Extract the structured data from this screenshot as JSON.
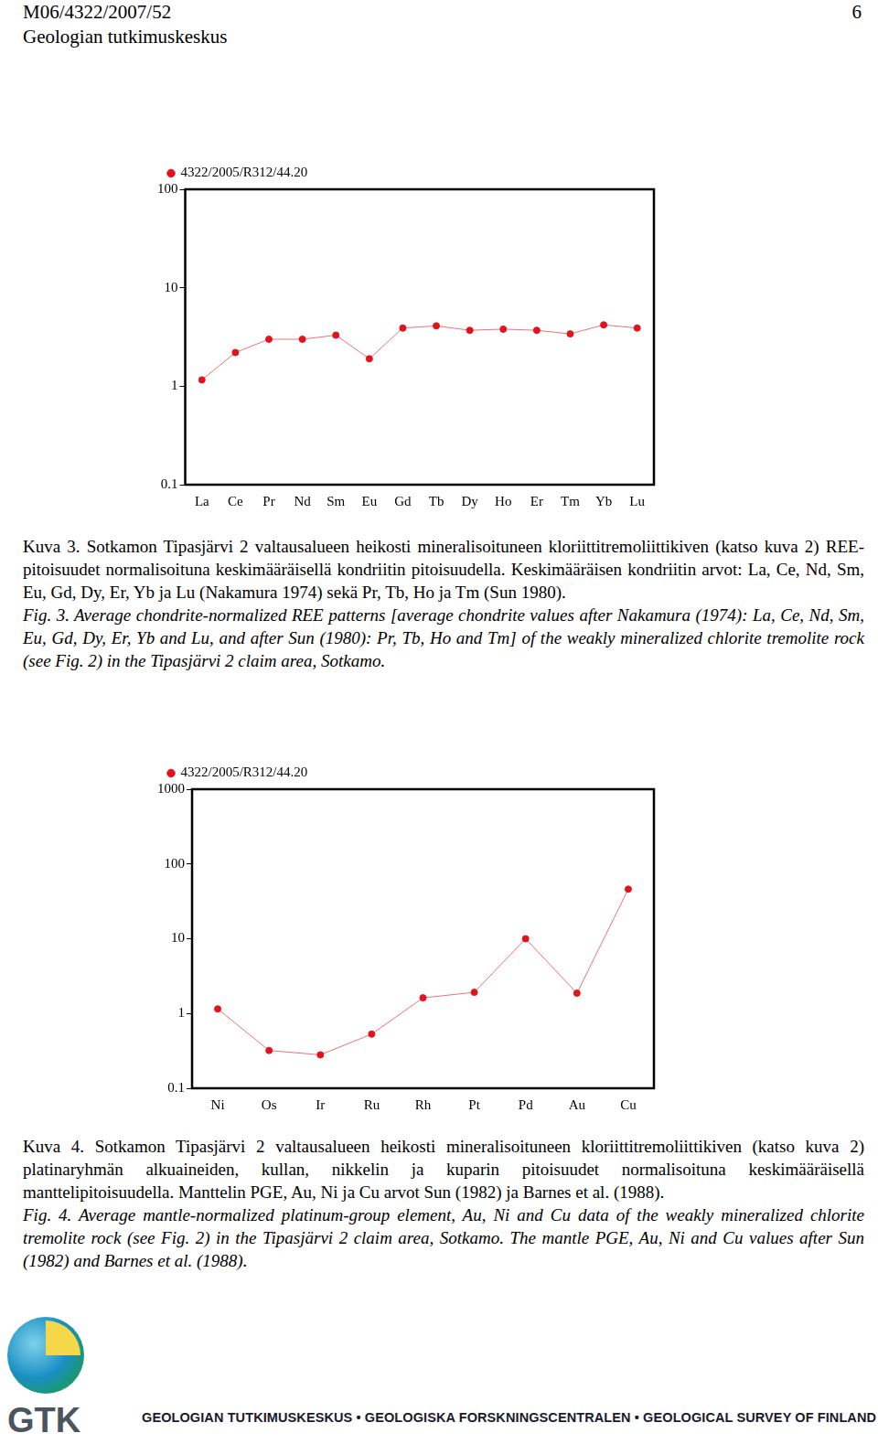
{
  "header": {
    "lines": [
      "M06/4322/2007/52",
      "Geologian tutkimuskeskus"
    ],
    "page": "6"
  },
  "chart_data": [
    {
      "type": "line",
      "log": "y",
      "legend": "top left",
      "grid": false,
      "marker": "circle",
      "categories": [
        "La",
        "Ce",
        "Pr",
        "Nd",
        "Sm",
        "Eu",
        "Gd",
        "Tb",
        "Dy",
        "Ho",
        "Er",
        "Tm",
        "Yb",
        "Lu"
      ],
      "series": [
        {
          "name": "4322/2005/R312/44.20",
          "color": "#e3121b",
          "values": [
            1.16,
            2.2,
            3.0,
            3.0,
            3.3,
            1.9,
            3.9,
            4.1,
            3.7,
            3.8,
            3.7,
            3.4,
            4.2,
            3.9
          ]
        }
      ],
      "ylim": [
        0.1,
        100
      ],
      "yticks": [
        0.1,
        1,
        10,
        100
      ]
    },
    {
      "type": "line",
      "log": "y",
      "legend": "top left",
      "grid": false,
      "marker": "circle",
      "categories": [
        "Ni",
        "Os",
        "Ir",
        "Ru",
        "Rh",
        "Pt",
        "Pd",
        "Au",
        "Cu"
      ],
      "series": [
        {
          "name": "4322/2005/R312/44.20",
          "color": "#e3121b",
          "values": [
            1.15,
            0.32,
            0.28,
            0.53,
            1.62,
            1.92,
            10,
            1.87,
            46
          ]
        }
      ],
      "ylim": [
        0.1,
        1000
      ],
      "yticks": [
        0.1,
        1,
        10,
        100,
        1000
      ]
    }
  ],
  "captions": [
    {
      "fi_label": "Kuva 3.",
      "fi": "Sotkamon Tipasjärvi 2 valtausalueen heikosti mineralisoituneen kloriittitremoliittikiven (katso kuva 2) REE-pitoisuudet normalisoituna keskimääräisellä kondriitin pitoisuudella. Keskimääräisen kondriitin arvot: La, Ce, Nd, Sm, Eu, Gd, Dy, Er, Yb ja Lu (Nakamura 1974) sekä Pr, Tb, Ho ja Tm (Sun 1980).",
      "en_label": "Fig. 3.",
      "en": "Average chondrite-normalized REE patterns [average chondrite values after Nakamura (1974): La, Ce, Nd, Sm, Eu, Gd, Dy, Er, Yb and Lu, and after Sun (1980): Pr, Tb, Ho and Tm] of the weakly mineralized chlorite tremolite rock (see Fig. 2) in the Tipasjärvi 2 claim area, Sotkamo."
    },
    {
      "fi_label": "Kuva 4.",
      "fi": "Sotkamon Tipasjärvi 2 valtausalueen heikosti mineralisoituneen kloriittitremoliittikiven (katso kuva 2) platinaryhmän alkuaineiden, kullan, nikkelin ja kuparin pitoisuudet normalisoituna keskimääräisellä manttelipitoisuudella. Manttelin PGE, Au, Ni ja Cu arvot Sun (1982) ja Barnes et al. (1988).",
      "en_label": "Fig. 4.",
      "en": "Average mantle-normalized platinum-group element, Au, Ni and Cu data of the weakly mineralized chlorite tremolite rock (see Fig. 2) in the Tipasjärvi 2 claim area, Sotkamo. The mantle PGE, Au, Ni and Cu values after Sun (1982) and Barnes et al. (1988)."
    }
  ],
  "footer": {
    "logo_text": "GTK",
    "text": "GEOLOGIAN TUTKIMUSKESKUS • GEOLOGISKA FORSKNINGSCENTRALEN • GEOLOGICAL SURVEY OF FINLAND"
  }
}
